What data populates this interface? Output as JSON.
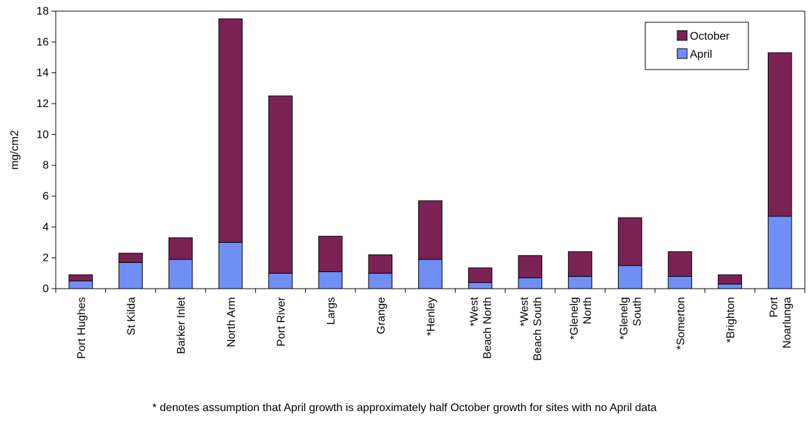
{
  "chart_data": {
    "type": "bar",
    "stacked": true,
    "categories": [
      "Port Hughes",
      "St Kilda",
      "Barker Inlet",
      "North Arm",
      "Port River",
      "Largs",
      "Grange",
      "*Henley",
      "*West Beach North",
      "*West Beach South",
      "*Glenelg North",
      "*Glenelg South",
      "*Somerton",
      "*Brighton",
      "Port Noarlunga"
    ],
    "series": [
      {
        "name": "April",
        "color": "#6f8ff7",
        "values": [
          0.5,
          1.7,
          1.9,
          3.0,
          1.0,
          1.1,
          1.0,
          1.9,
          0.4,
          0.7,
          0.8,
          1.5,
          0.8,
          0.3,
          4.7
        ]
      },
      {
        "name": "October",
        "color": "#7b2255",
        "values": [
          0.4,
          0.6,
          1.4,
          14.5,
          11.5,
          2.3,
          1.2,
          3.8,
          0.95,
          1.45,
          1.6,
          3.1,
          1.6,
          0.6,
          10.6
        ]
      }
    ],
    "title": "",
    "xlabel": "",
    "ylabel": "mg/cm2",
    "ylim": [
      0,
      18
    ],
    "yticks": [
      0,
      2,
      4,
      6,
      8,
      10,
      12,
      14,
      16,
      18
    ],
    "legend_position": "top-right",
    "legend_order": [
      "October",
      "April"
    ],
    "grid": false
  },
  "footnote": "* denotes assumption that April growth is approximately half October growth for sites with no April data"
}
